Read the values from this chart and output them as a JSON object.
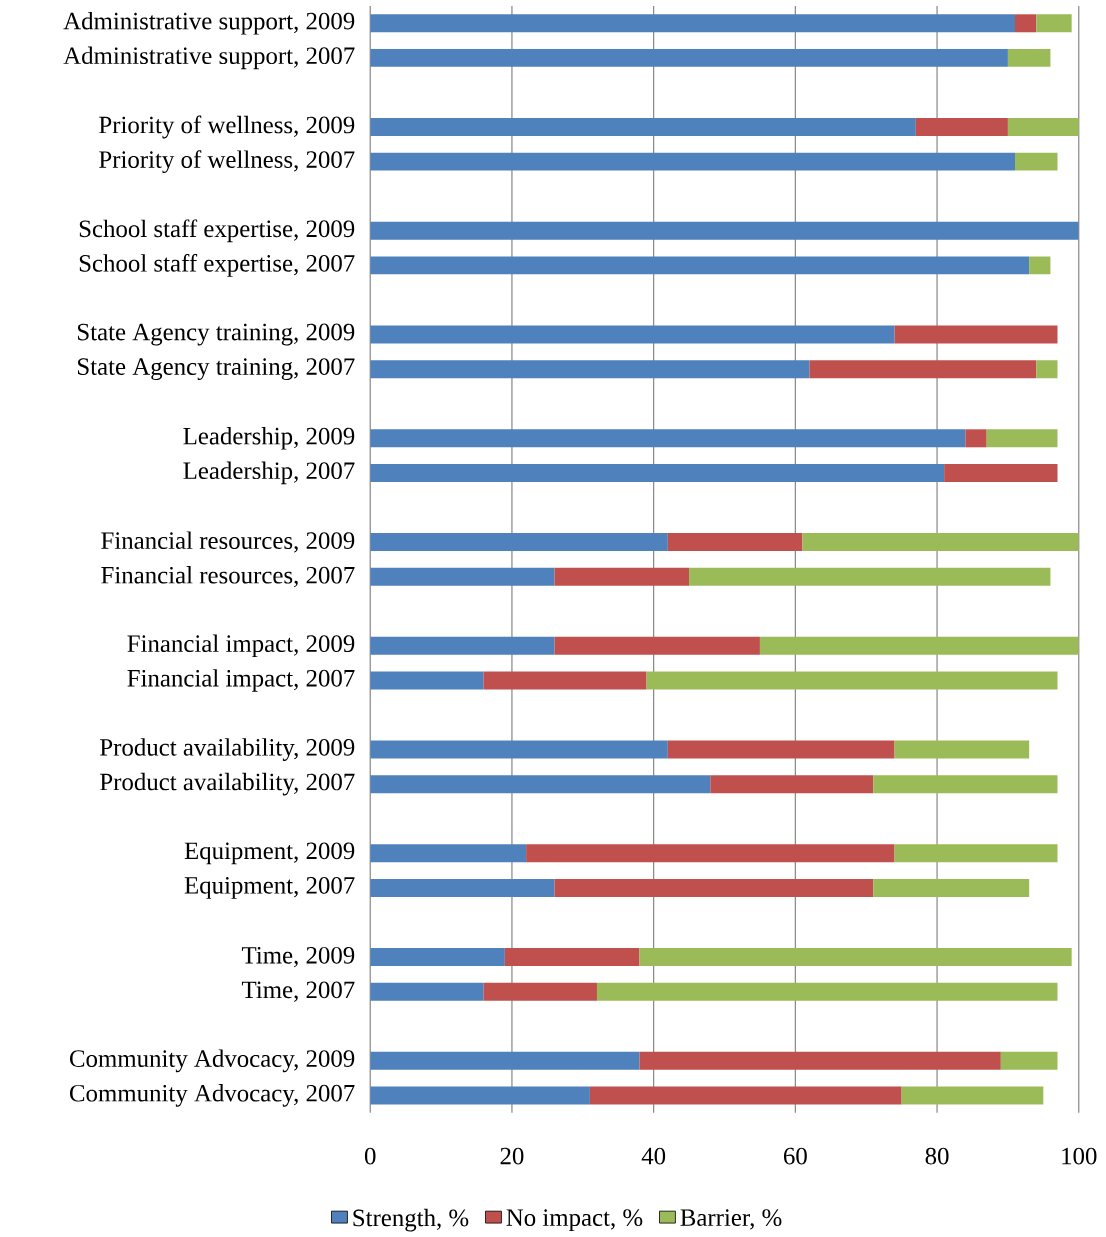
{
  "chart_data": {
    "type": "bar",
    "orientation": "horizontal",
    "stacked": true,
    "categories": [
      "Administrative support, 2009",
      "Administrative support, 2007",
      null,
      "Priority of wellness, 2009",
      "Priority of wellness, 2007",
      null,
      "School staff expertise, 2009",
      "School staff expertise, 2007",
      null,
      "State Agency training, 2009",
      "State Agency training, 2007",
      null,
      "Leadership, 2009",
      "Leadership, 2007",
      null,
      "Financial resources, 2009",
      "Financial resources, 2007",
      null,
      "Financial impact, 2009",
      "Financial impact, 2007",
      null,
      "Product availability, 2009",
      "Product availability, 2007",
      null,
      "Equipment, 2009",
      "Equipment, 2007",
      null,
      "Time, 2009",
      "Time, 2007",
      null,
      "Community Advocacy, 2009",
      "Community Advocacy, 2007"
    ],
    "series": [
      {
        "name": "Strength, %",
        "color": "#4f81bd",
        "values": [
          91,
          90,
          null,
          77,
          91,
          null,
          100,
          93,
          null,
          74,
          62,
          null,
          84,
          81,
          null,
          42,
          26,
          null,
          26,
          16,
          null,
          42,
          48,
          null,
          22,
          26,
          null,
          19,
          16,
          null,
          38,
          31
        ]
      },
      {
        "name": "No impact, %",
        "color": "#c0504d",
        "values": [
          3,
          0,
          null,
          13,
          0,
          null,
          0,
          0,
          null,
          23,
          32,
          null,
          3,
          16,
          null,
          19,
          19,
          null,
          29,
          23,
          null,
          32,
          23,
          null,
          52,
          45,
          null,
          19,
          16,
          null,
          51,
          44
        ]
      },
      {
        "name": "Barrier, %",
        "color": "#9bbb59",
        "values": [
          5,
          6,
          null,
          10,
          6,
          null,
          0,
          3,
          null,
          0,
          3,
          null,
          10,
          0,
          null,
          39,
          51,
          null,
          45,
          58,
          null,
          19,
          26,
          null,
          23,
          22,
          null,
          61,
          65,
          null,
          8,
          20
        ]
      }
    ],
    "xlim": [
      0,
      100
    ],
    "xticks": [
      0,
      20,
      40,
      60,
      80,
      100
    ],
    "grid": "x",
    "legend": "bottom"
  }
}
